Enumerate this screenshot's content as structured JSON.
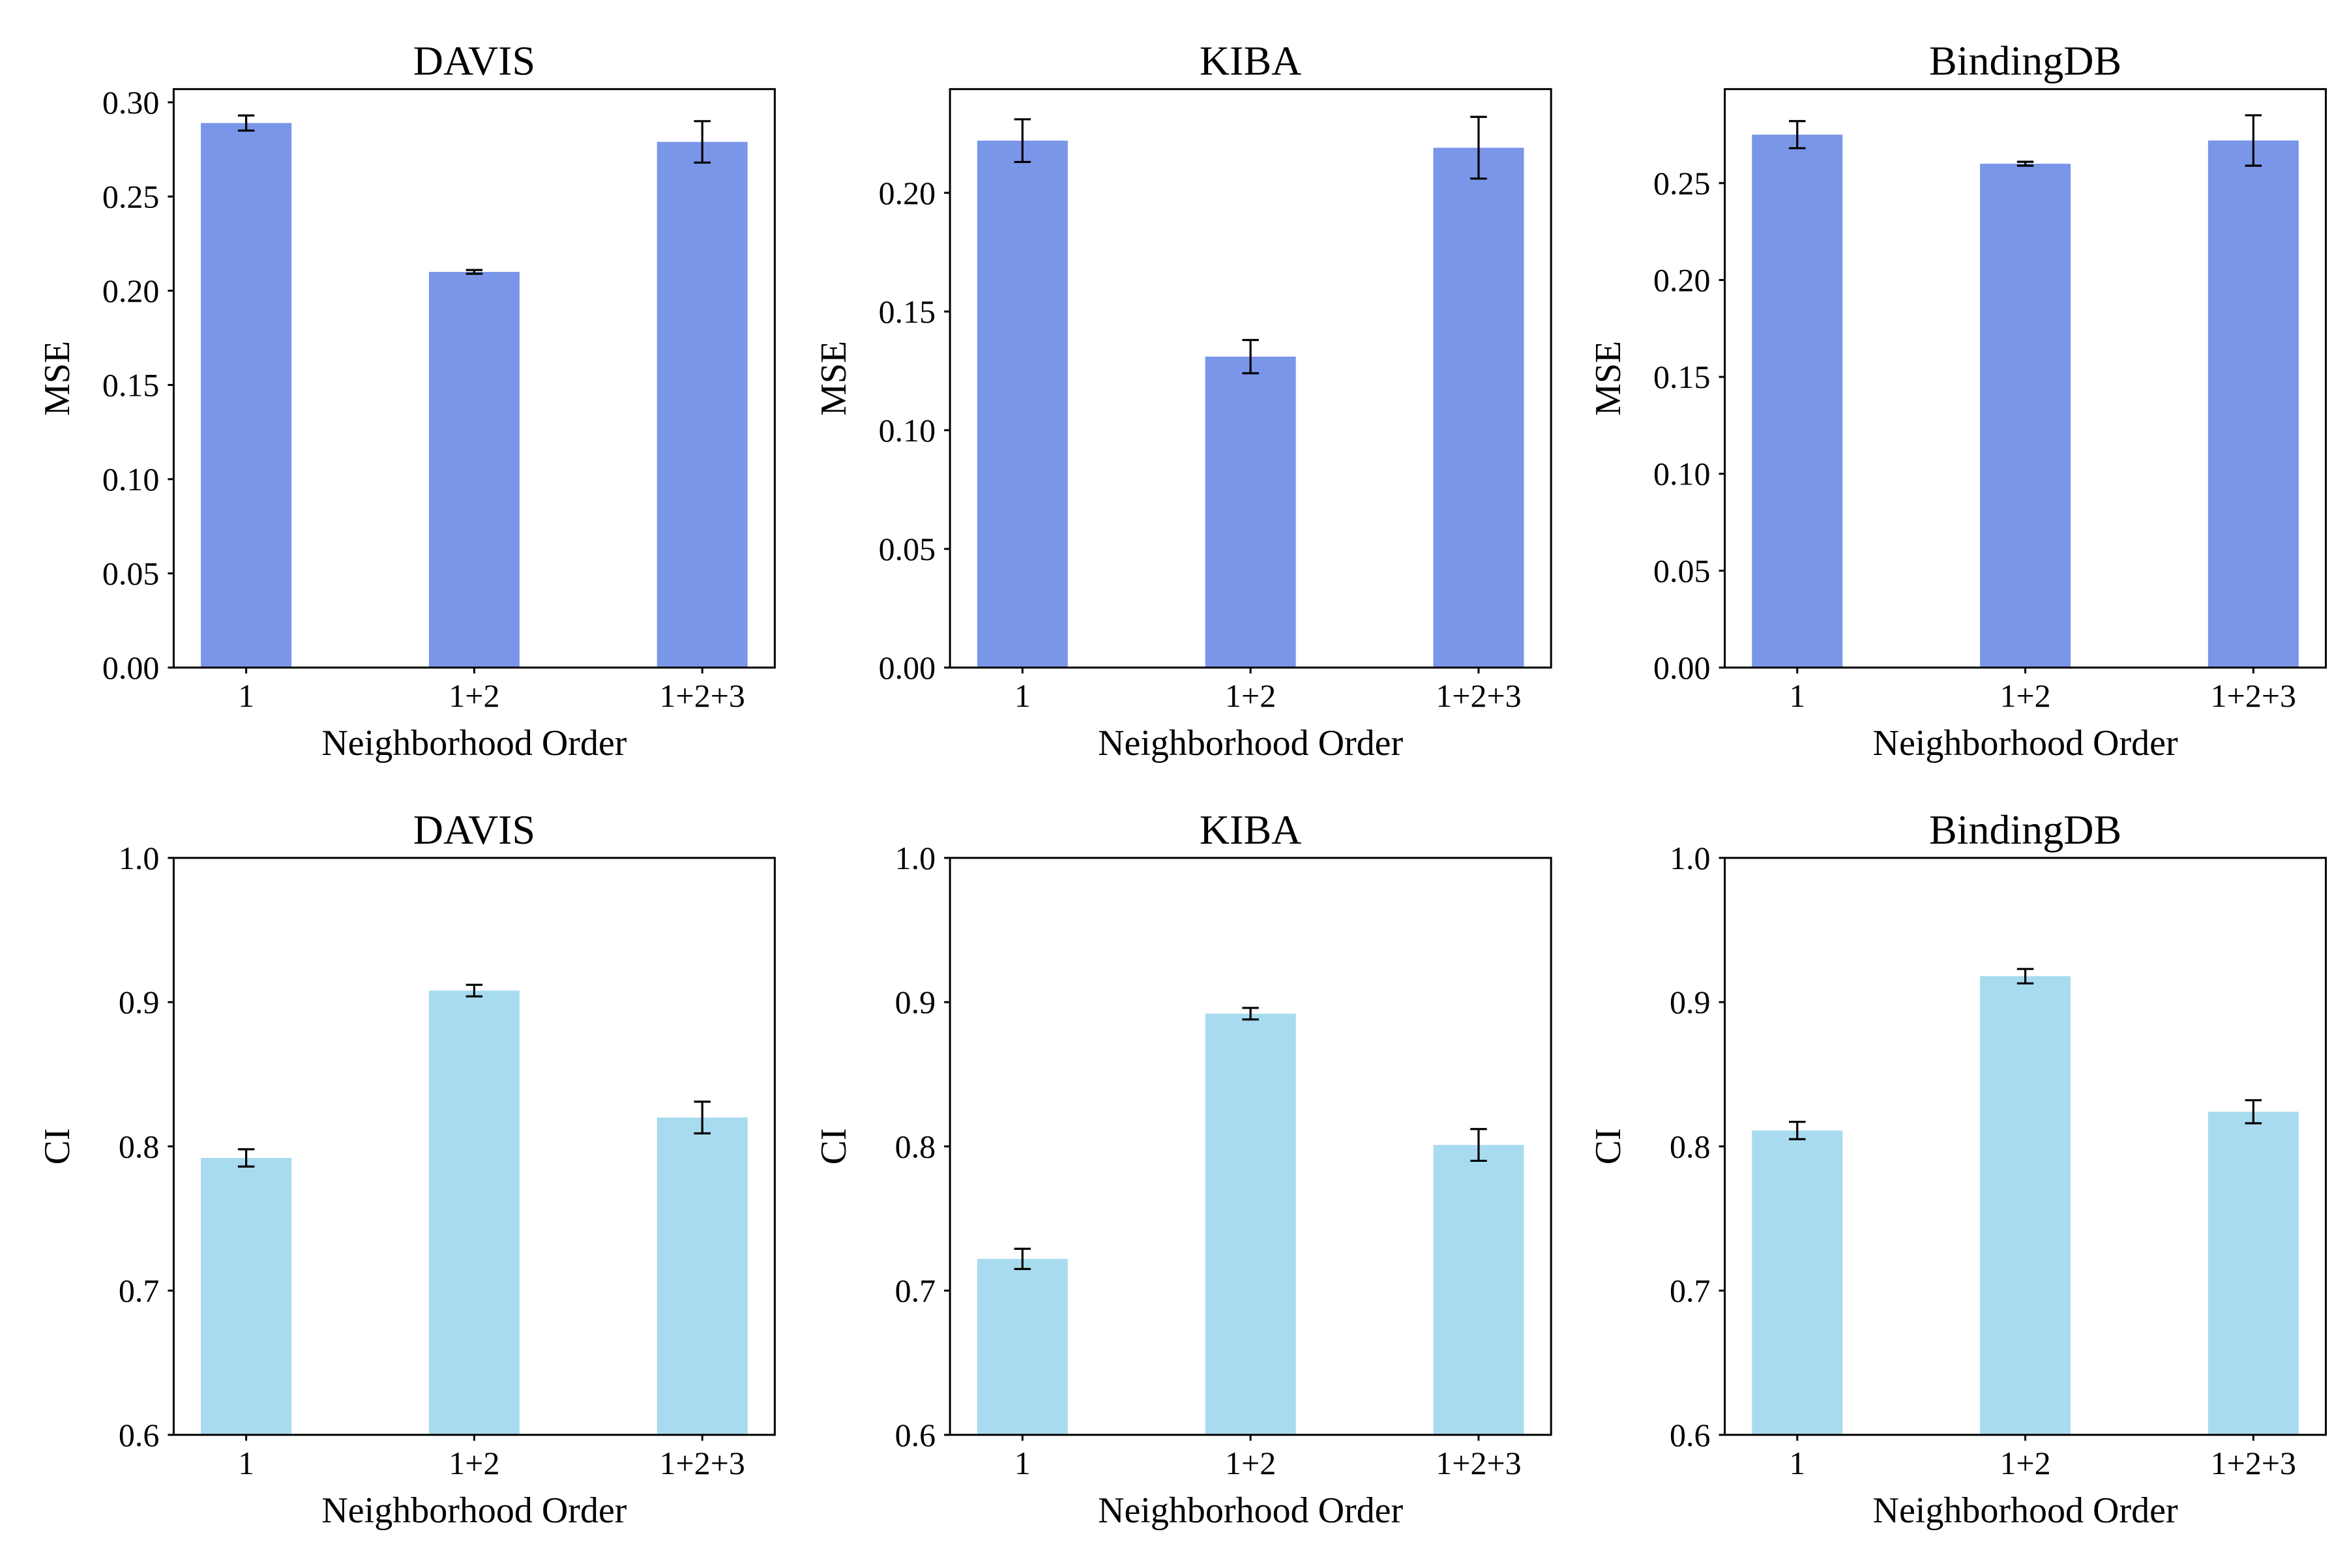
{
  "chart_data": [
    {
      "type": "bar",
      "title": "DAVIS",
      "xlabel": "Neighborhood Order",
      "ylabel": "MSE",
      "categories": [
        "1",
        "1+2",
        "1+2+3"
      ],
      "values": [
        0.289,
        0.21,
        0.279
      ],
      "errors": [
        0.004,
        0.001,
        0.011
      ],
      "ylim": [
        0,
        0.307
      ],
      "yticks": [
        "0.00",
        "0.05",
        "0.10",
        "0.15",
        "0.20",
        "0.25",
        "0.30"
      ],
      "grid": false,
      "color": "#7a96e8"
    },
    {
      "type": "bar",
      "title": "KIBA",
      "xlabel": "Neighborhood Order",
      "ylabel": "MSE",
      "categories": [
        "1",
        "1+2",
        "1+2+3"
      ],
      "values": [
        0.222,
        0.131,
        0.219
      ],
      "errors": [
        0.009,
        0.007,
        0.013
      ],
      "ylim": [
        0,
        0.2437
      ],
      "yticks": [
        "0.00",
        "0.05",
        "0.10",
        "0.15",
        "0.20"
      ],
      "grid": false,
      "color": "#7a96e8"
    },
    {
      "type": "bar",
      "title": "BindingDB",
      "xlabel": "Neighborhood Order",
      "ylabel": "MSE",
      "categories": [
        "1",
        "1+2",
        "1+2+3"
      ],
      "values": [
        0.275,
        0.26,
        0.272
      ],
      "errors": [
        0.007,
        0.001,
        0.013
      ],
      "ylim": [
        0,
        0.2985
      ],
      "yticks": [
        "0.00",
        "0.05",
        "0.10",
        "0.15",
        "0.20",
        "0.25"
      ],
      "grid": false,
      "color": "#7a96e8"
    },
    {
      "type": "bar",
      "title": "DAVIS",
      "xlabel": "Neighborhood Order",
      "ylabel": "CI",
      "categories": [
        "1",
        "1+2",
        "1+2+3"
      ],
      "values": [
        0.792,
        0.908,
        0.82
      ],
      "errors": [
        0.006,
        0.004,
        0.011
      ],
      "ylim": [
        0.6,
        1.0
      ],
      "yticks": [
        "0.6",
        "0.7",
        "0.8",
        "0.9",
        "1.0"
      ],
      "grid": false,
      "color": "#a8dbef"
    },
    {
      "type": "bar",
      "title": "KIBA",
      "xlabel": "Neighborhood Order",
      "ylabel": "CI",
      "categories": [
        "1",
        "1+2",
        "1+2+3"
      ],
      "values": [
        0.722,
        0.892,
        0.801
      ],
      "errors": [
        0.007,
        0.004,
        0.011
      ],
      "ylim": [
        0.6,
        1.0
      ],
      "yticks": [
        "0.6",
        "0.7",
        "0.8",
        "0.9",
        "1.0"
      ],
      "grid": false,
      "color": "#a8dbef"
    },
    {
      "type": "bar",
      "title": "BindingDB",
      "xlabel": "Neighborhood Order",
      "ylabel": "CI",
      "categories": [
        "1",
        "1+2",
        "1+2+3"
      ],
      "values": [
        0.811,
        0.918,
        0.824
      ],
      "errors": [
        0.006,
        0.005,
        0.008
      ],
      "ylim": [
        0.6,
        1.0
      ],
      "yticks": [
        "0.6",
        "0.7",
        "0.8",
        "0.9",
        "1.0"
      ],
      "grid": false,
      "color": "#a8dbef"
    }
  ]
}
